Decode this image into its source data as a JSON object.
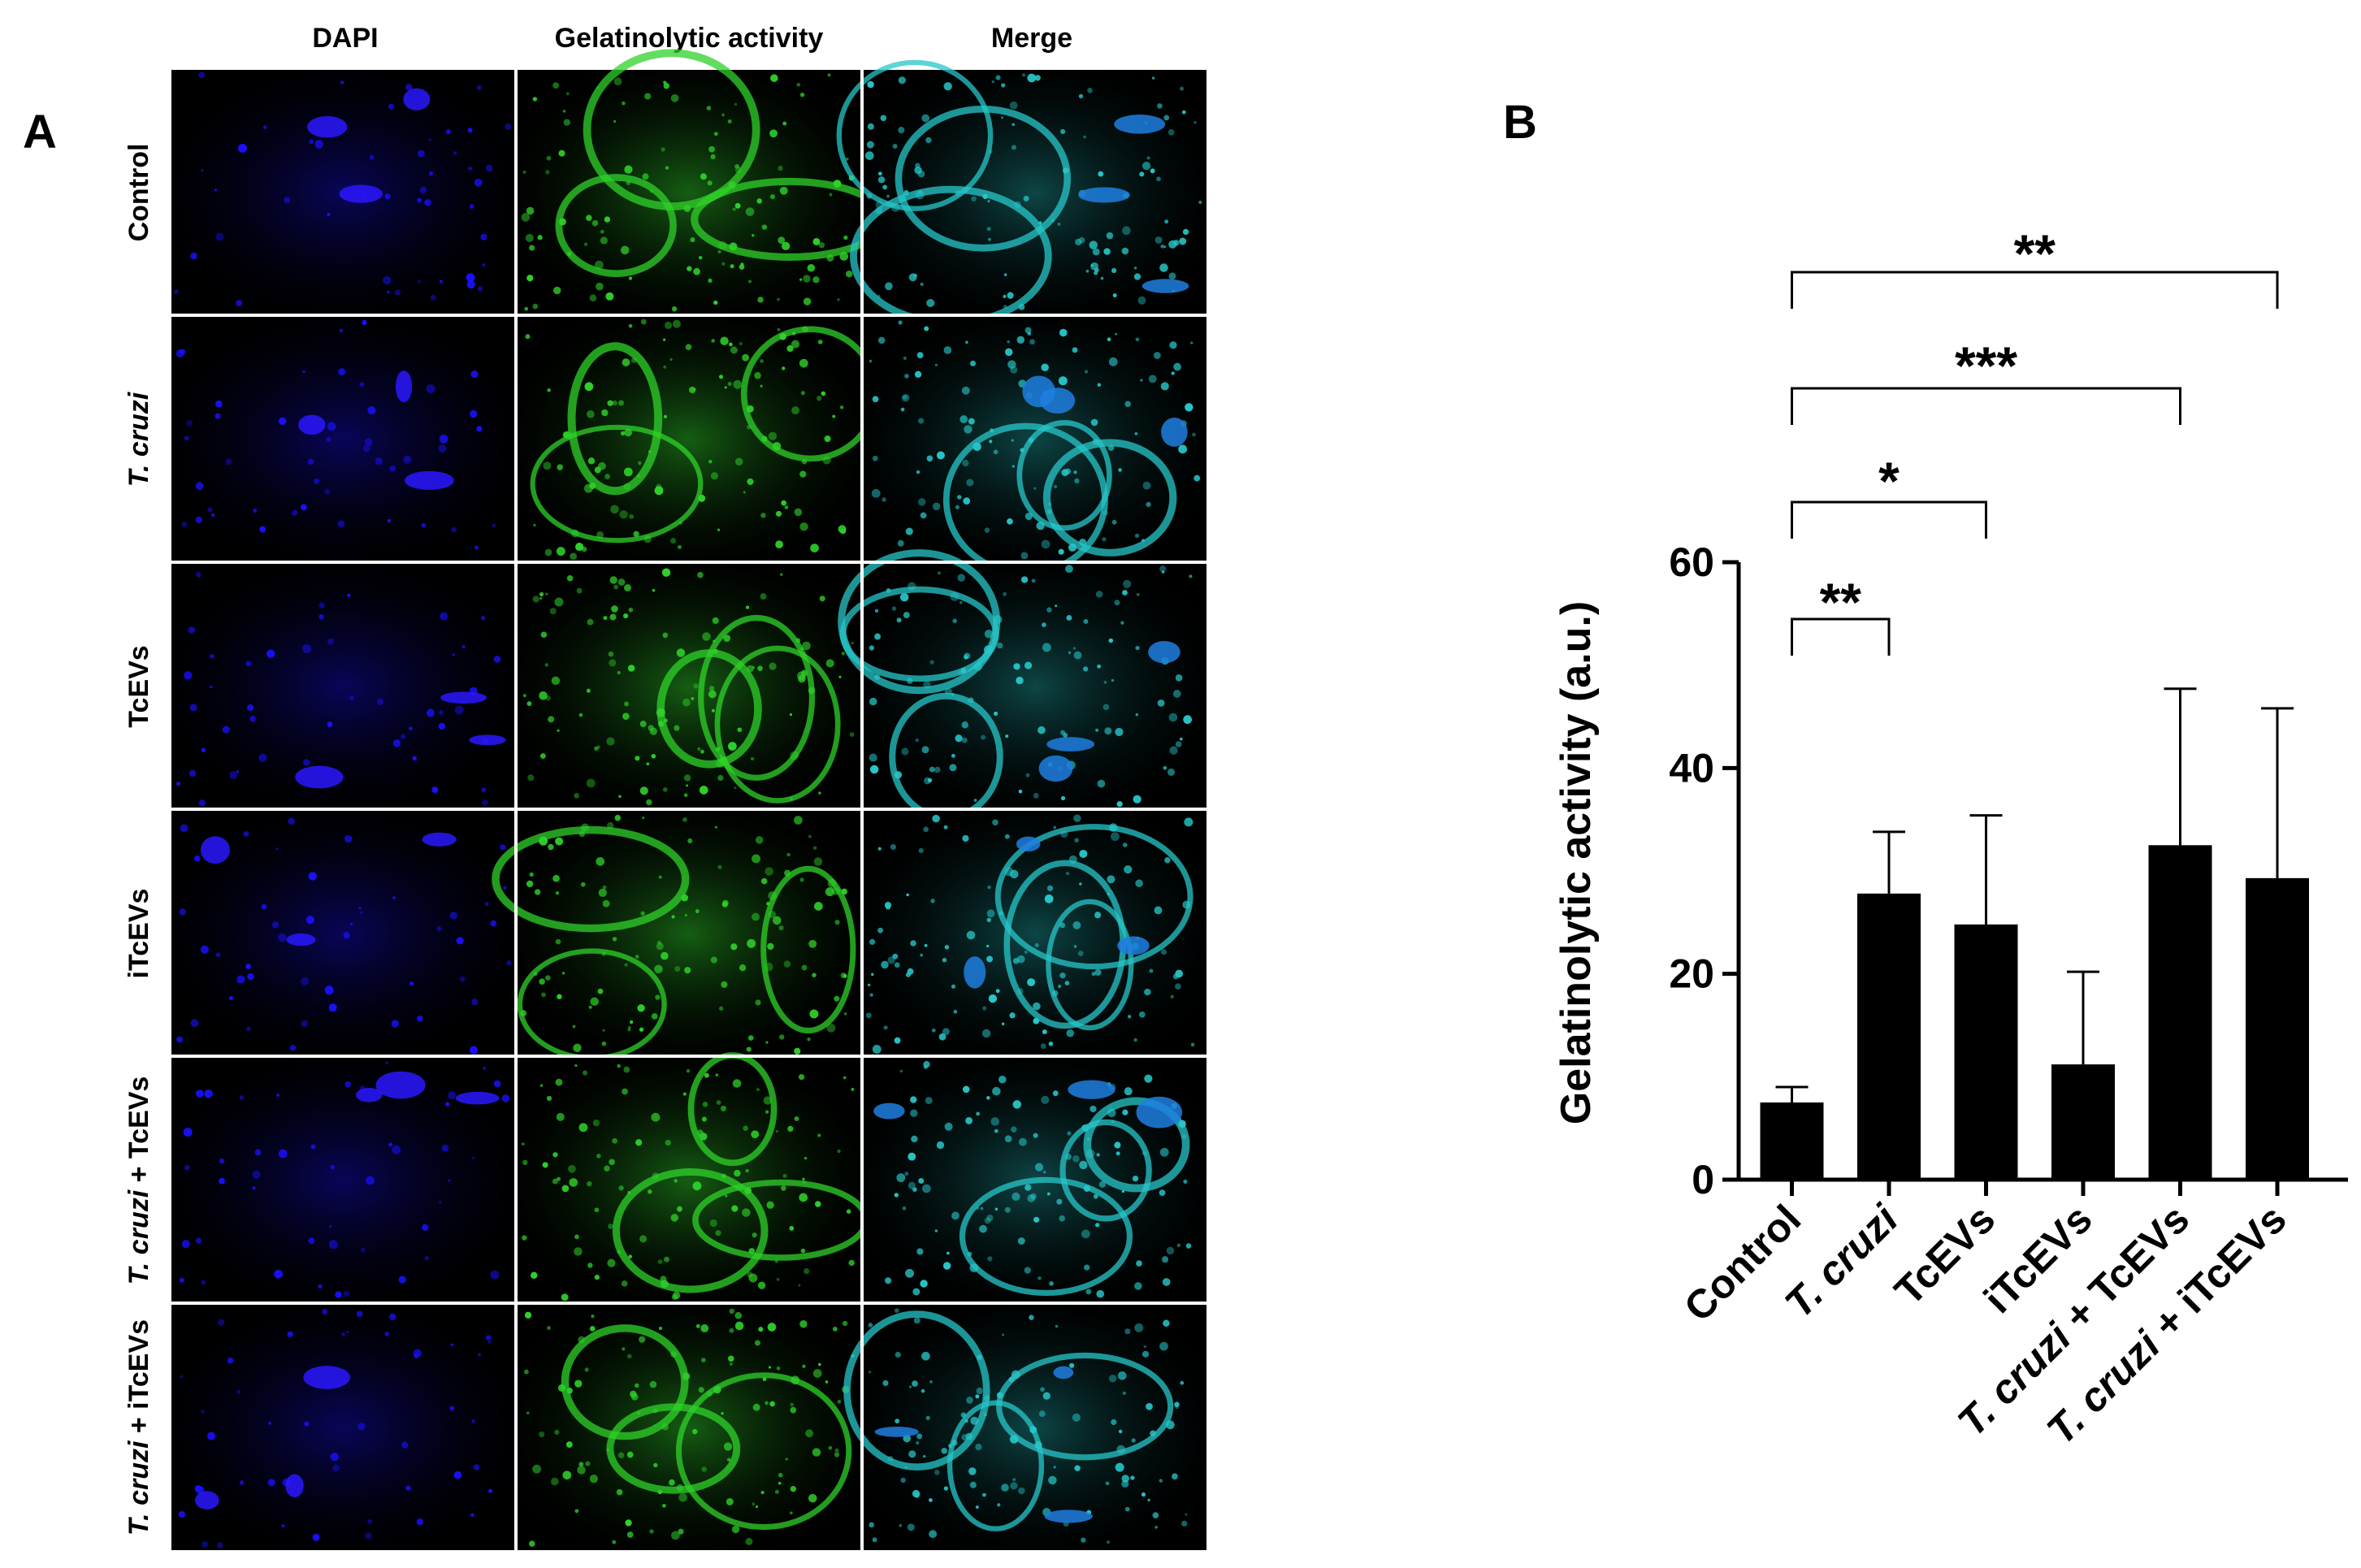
{
  "panel_a": {
    "letter": "A",
    "columns": [
      "DAPI",
      "Gelatinolytic activity",
      "Merge"
    ],
    "rows": [
      {
        "parts": [
          {
            "text": "Control",
            "italic": false
          }
        ]
      },
      {
        "parts": [
          {
            "text": "T. cruzi",
            "italic": true
          }
        ]
      },
      {
        "parts": [
          {
            "text": "TcEVs",
            "italic": false
          }
        ]
      },
      {
        "parts": [
          {
            "text": "iTcEVs",
            "italic": false
          }
        ]
      },
      {
        "parts": [
          {
            "text": "T. cruzi",
            "italic": true
          },
          {
            "text": " + TcEVs",
            "italic": false
          }
        ]
      },
      {
        "parts": [
          {
            "text": "T. cruzi",
            "italic": true
          },
          {
            "text": " + iTcEVs",
            "italic": false
          }
        ]
      }
    ],
    "colors": {
      "dapi": "#1a10ff",
      "gelatinolytic": "#2fd12a",
      "merge": "#27c7c9",
      "background": "#000000"
    }
  },
  "panel_b": {
    "letter": "B"
  },
  "chart_data": {
    "type": "bar",
    "categories": [
      {
        "parts": [
          {
            "text": "Control",
            "italic": false
          }
        ]
      },
      {
        "parts": [
          {
            "text": "T. cruzi",
            "italic": true
          }
        ]
      },
      {
        "parts": [
          {
            "text": "TcEVs",
            "italic": false
          }
        ]
      },
      {
        "parts": [
          {
            "text": "iTcEVs",
            "italic": false
          }
        ]
      },
      {
        "parts": [
          {
            "text": "T. cruzi",
            "italic": true
          },
          {
            "text": " + TcEVs",
            "italic": false
          }
        ]
      },
      {
        "parts": [
          {
            "text": "T. cruzi",
            "italic": true
          },
          {
            "text": " + iTcEVs",
            "italic": false
          }
        ]
      }
    ],
    "values": [
      7.5,
      27.8,
      24.8,
      11.2,
      32.5,
      29.3
    ],
    "error_upper": [
      9.0,
      33.8,
      35.4,
      20.2,
      47.7,
      45.8
    ],
    "ylabel": "Gelatinolytic activity (a.u.)",
    "ylim": [
      0,
      60
    ],
    "yticks": [
      0,
      20,
      40,
      60
    ],
    "bar_color": "#000000",
    "significance": [
      {
        "from": 0,
        "to": 1,
        "label": "**"
      },
      {
        "from": 0,
        "to": 2,
        "label": "*"
      },
      {
        "from": 0,
        "to": 4,
        "label": "***"
      },
      {
        "from": 0,
        "to": 5,
        "label": "**"
      }
    ]
  }
}
